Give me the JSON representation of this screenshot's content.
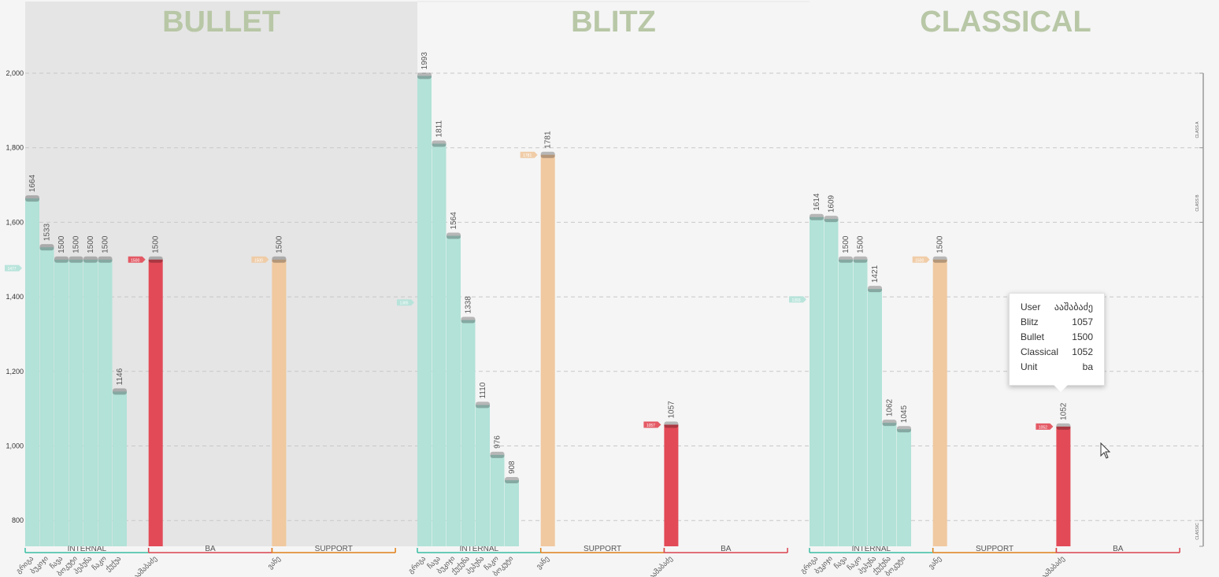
{
  "chart_data": {
    "type": "bar",
    "ylim": [
      720,
      2055
    ],
    "yticks": [
      800,
      1000,
      1200,
      1400,
      1600,
      1800,
      2000
    ],
    "ytick_labels": [
      "800",
      "1,000",
      "1,200",
      "1,400",
      "1,600",
      "1,800",
      "2,000"
    ],
    "class_labels": [
      "CLASS A",
      "CLASS B",
      "CLASSIC"
    ],
    "colors": {
      "internal": "#b2e2d8",
      "support": "#f0c9a0",
      "ba": "#e24a57",
      "internal_line": "#3bbfa3",
      "support_line": "#e0801a",
      "ba_line": "#d9434f",
      "title": "#b8c7a6"
    },
    "panels": [
      {
        "title": "BULLET",
        "shaded": true,
        "groups": [
          {
            "name": "INTERNAL",
            "kind": "internal",
            "categories": [
              "გრიგა",
              "ბუკიჯი",
              "ჩავა",
              "ბოკუტი",
              "პეპუნა",
              "ჩაკო",
              "ქუქუა"
            ],
            "values": [
              1664,
              1533,
              1500,
              1500,
              1500,
              1500,
              1146
            ],
            "avg": 1477,
            "avg_label": "1477"
          },
          {
            "name": "BA",
            "kind": "ba",
            "categories": [
              "ააშაბაძე"
            ],
            "values": [
              1500
            ],
            "avg": 1500,
            "avg_label": "1500"
          },
          {
            "name": "SUPPORT",
            "kind": "support",
            "categories": [
              "ვანე"
            ],
            "values": [
              1500
            ],
            "avg": 1500,
            "avg_label": "1500"
          }
        ]
      },
      {
        "title": "BLITZ",
        "shaded": false,
        "groups": [
          {
            "name": "INTERNAL",
            "kind": "internal",
            "categories": [
              "გრიგა",
              "ჩავა",
              "ბუკიჯი",
              "ქუქუნა",
              "პეპუნა",
              "ჩაკო",
              "ბოკუტი"
            ],
            "values": [
              1993,
              1811,
              1564,
              1338,
              1110,
              976,
              908
            ],
            "avg": 1385,
            "avg_label": "1385"
          },
          {
            "name": "SUPPORT",
            "kind": "support",
            "categories": [
              "ვანე"
            ],
            "values": [
              1781
            ],
            "avg": 1781,
            "avg_label": "1781"
          },
          {
            "name": "BA",
            "kind": "ba",
            "categories": [
              "ააშაბაძე"
            ],
            "values": [
              1057
            ],
            "avg": 1057,
            "avg_label": "1057"
          }
        ]
      },
      {
        "title": "CLASSICAL",
        "shaded": false,
        "groups": [
          {
            "name": "INTERNAL",
            "kind": "internal",
            "categories": [
              "გრიგა",
              "ბუკიჯი",
              "ჩავა",
              "ჩაკო",
              "პეპუნა",
              "ქუქუნა",
              "ბოკუტი"
            ],
            "values": [
              1614,
              1609,
              1500,
              1500,
              1421,
              1062,
              1045
            ],
            "avg": 1393,
            "avg_label": "1393"
          },
          {
            "name": "SUPPORT",
            "kind": "support",
            "categories": [
              "ვანე"
            ],
            "values": [
              1500
            ],
            "avg": 1500,
            "avg_label": "1500"
          },
          {
            "name": "BA",
            "kind": "ba",
            "categories": [
              "ააშაბაძე"
            ],
            "values": [
              1052
            ],
            "avg": 1052,
            "avg_label": "1052"
          }
        ]
      }
    ]
  },
  "tooltip": {
    "rows": [
      {
        "key": "User",
        "value": "ააშაბაძე"
      },
      {
        "key": "Blitz",
        "value": "1057"
      },
      {
        "key": "Bullet",
        "value": "1500"
      },
      {
        "key": "Classical",
        "value": "1052"
      },
      {
        "key": "Unit",
        "value": "ba"
      }
    ]
  }
}
